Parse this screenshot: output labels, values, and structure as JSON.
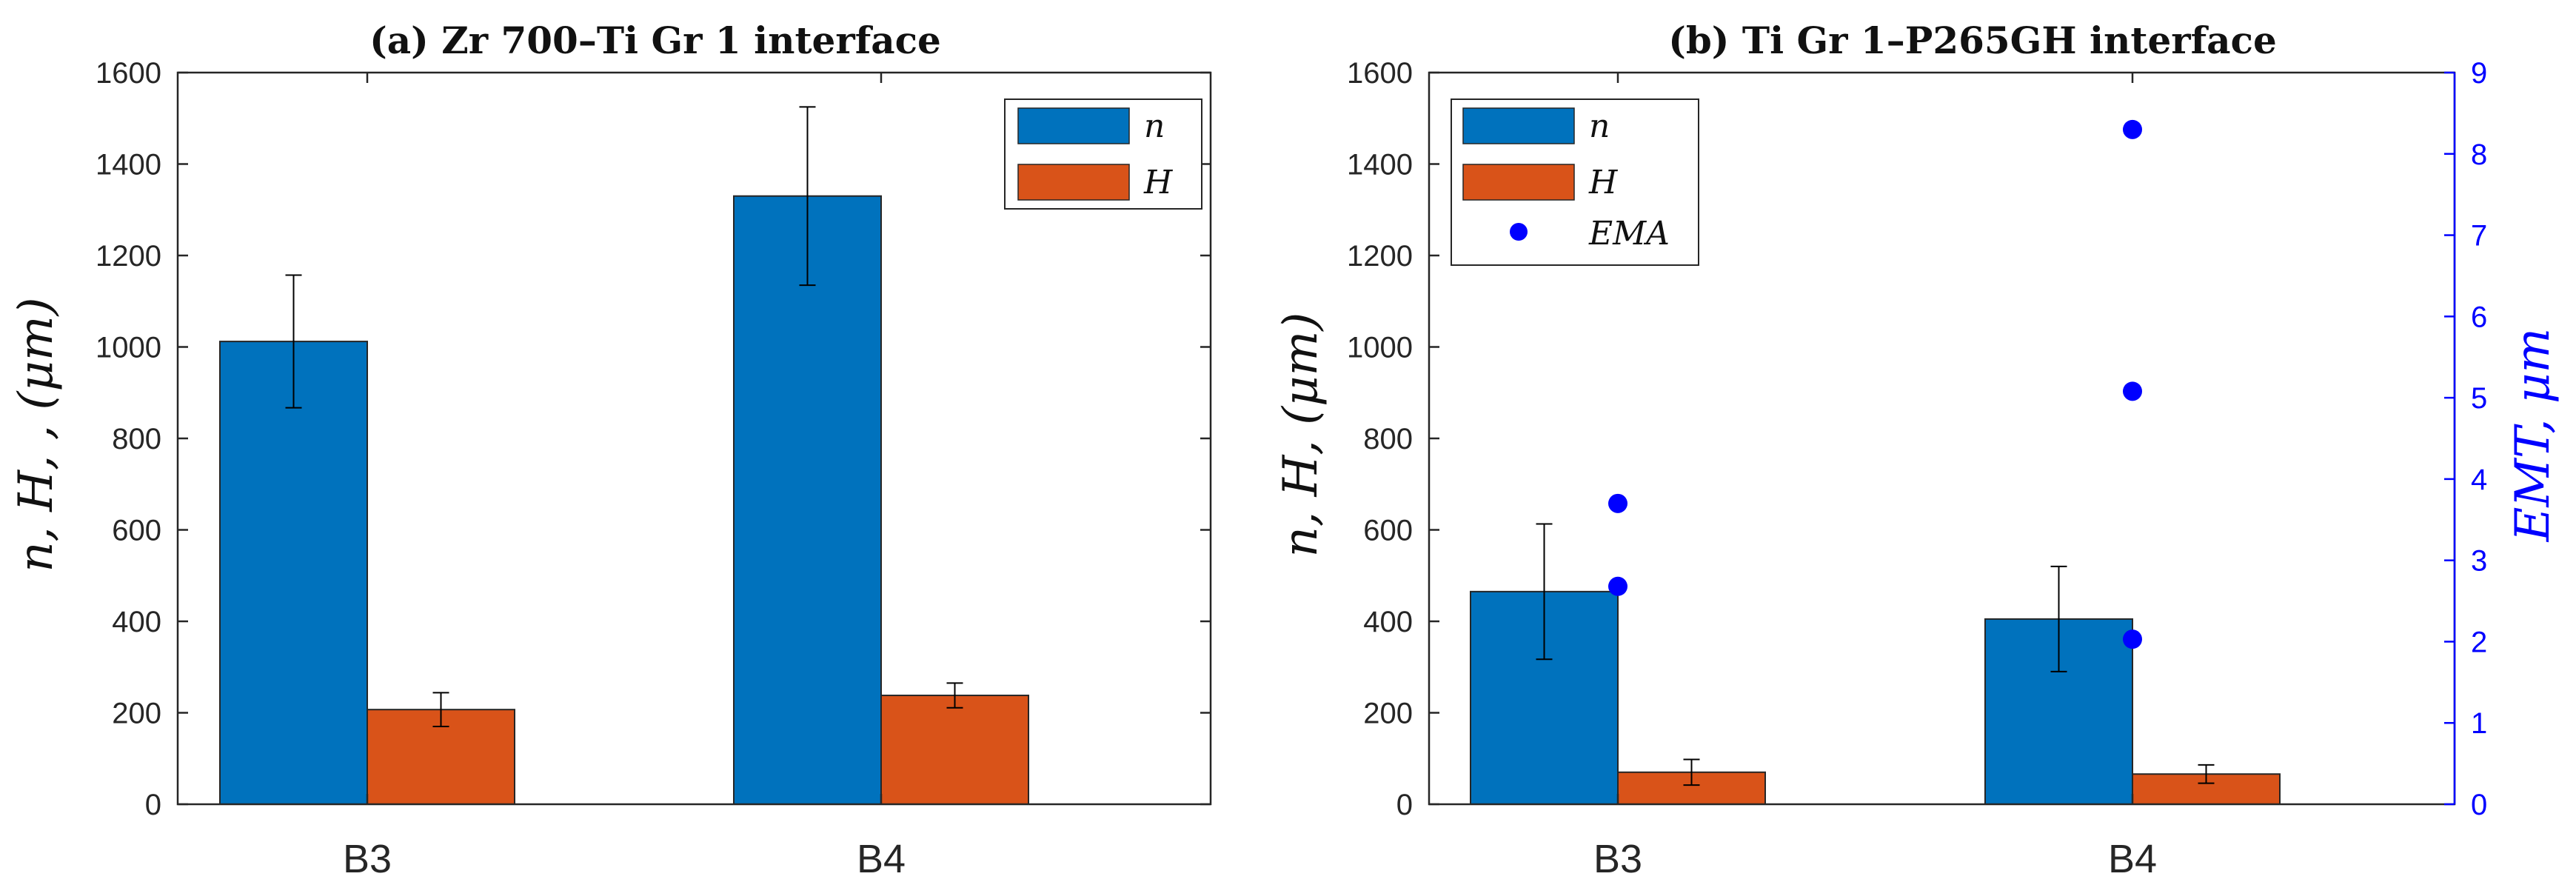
{
  "chart_data": [
    {
      "type": "bar",
      "title": "(a) Zr 700–Ti Gr 1 interface",
      "categories": [
        "B3",
        "B4"
      ],
      "series": [
        {
          "name": "n",
          "color": "#0072BD",
          "values": [
            1012,
            1330
          ],
          "errors": [
            145,
            195
          ]
        },
        {
          "name": "H",
          "color": "#D95319",
          "values": [
            207,
            238
          ],
          "errors": [
            37,
            27
          ]
        }
      ],
      "ylabel": "n, H, , (μm)",
      "ylim": [
        0,
        1600
      ],
      "yticks": [
        0,
        200,
        400,
        600,
        800,
        1000,
        1200,
        1400,
        1600
      ],
      "legend": "top-right"
    },
    {
      "type": "bar",
      "title": "(b) Ti Gr 1–P265GH interface",
      "categories": [
        "B3",
        "B4"
      ],
      "series": [
        {
          "name": "n",
          "color": "#0072BD",
          "values": [
            465,
            405
          ],
          "errors": [
            148,
            115
          ]
        },
        {
          "name": "H",
          "color": "#D95319",
          "values": [
            70,
            66
          ],
          "errors": [
            28,
            20
          ]
        }
      ],
      "ylabel": "n, H, (μm)",
      "ylim": [
        0,
        1600
      ],
      "yticks": [
        0,
        200,
        400,
        600,
        800,
        1000,
        1200,
        1400,
        1600
      ],
      "y2label": "EMT, μm",
      "y2lim": [
        0,
        9
      ],
      "y2ticks": [
        0,
        1,
        2,
        3,
        4,
        5,
        6,
        7,
        8,
        9
      ],
      "scatter": {
        "name": "EMA",
        "color": "#0000FF",
        "points": [
          {
            "category": "B3",
            "y": 3.7
          },
          {
            "category": "B3",
            "y": 2.68
          },
          {
            "category": "B4",
            "y": 8.3
          },
          {
            "category": "B4",
            "y": 5.08
          },
          {
            "category": "B4",
            "y": 2.03
          }
        ]
      },
      "legend": "top-left"
    }
  ]
}
